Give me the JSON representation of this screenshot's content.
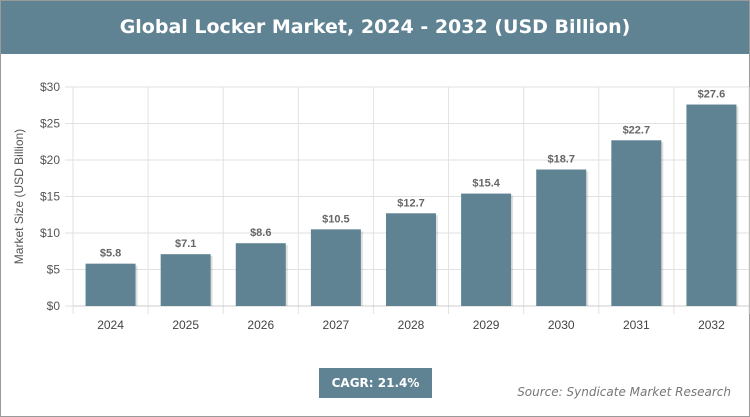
{
  "chart_data": {
    "type": "bar",
    "title": "Global Locker Market, 2024 - 2032 (USD Billion)",
    "xlabel": "",
    "ylabel": "Market Size (USD Billion)",
    "categories": [
      "2024",
      "2025",
      "2026",
      "2027",
      "2028",
      "2029",
      "2030",
      "2031",
      "2032"
    ],
    "values": [
      5.8,
      7.1,
      8.6,
      10.5,
      12.7,
      15.4,
      18.7,
      22.7,
      27.6
    ],
    "data_labels": [
      "$5.8",
      "$7.1",
      "$8.6",
      "$10.5",
      "$12.7",
      "$15.4",
      "$18.7",
      "$22.7",
      "$27.6"
    ],
    "ylim": [
      0,
      30
    ],
    "yticks": [
      0,
      5,
      10,
      15,
      20,
      25,
      30
    ],
    "ytick_labels": [
      "$0",
      "$5",
      "$10",
      "$15",
      "$20",
      "$25",
      "$30"
    ],
    "grid": true,
    "bar_color": "#5f8393"
  },
  "cagr": "CAGR: 21.4%",
  "source": "Source: Syndicate Market Research"
}
